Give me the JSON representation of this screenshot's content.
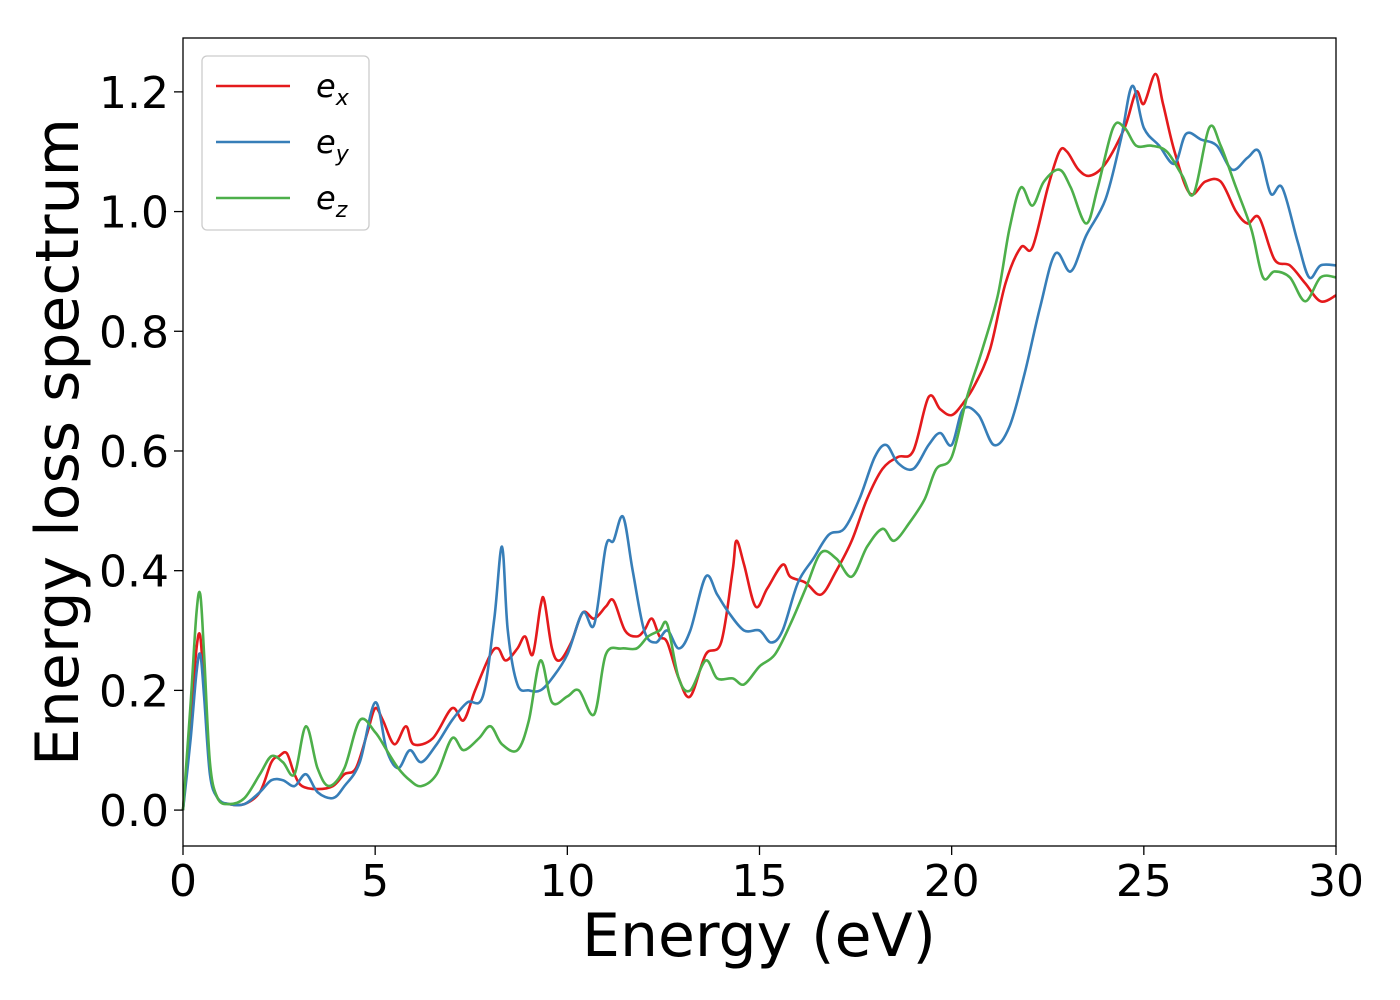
{
  "chart_data": {
    "type": "line",
    "xlabel": "Energy (eV)",
    "ylabel": "Energy loss spectrum",
    "xlim": [
      0,
      30
    ],
    "ylim": [
      -0.06,
      1.29
    ],
    "xticks": [
      0,
      5,
      10,
      15,
      20,
      25,
      30
    ],
    "xtick_labels": [
      "0",
      "5",
      "10",
      "15",
      "20",
      "25",
      "30"
    ],
    "yticks": [
      0.0,
      0.2,
      0.4,
      0.6,
      0.8,
      1.0,
      1.2
    ],
    "ytick_labels": [
      "0.0",
      "0.2",
      "0.4",
      "0.6",
      "0.8",
      "1.0",
      "1.2"
    ],
    "grid": false,
    "legend_position": "top-left",
    "series": [
      {
        "name": "e_x",
        "legend_base": "e",
        "legend_sub": "x",
        "color": "#e41a1c",
        "points": [
          [
            0,
            0
          ],
          [
            0.2,
            0.15
          ],
          [
            0.35,
            0.27
          ],
          [
            0.45,
            0.29
          ],
          [
            0.55,
            0.2
          ],
          [
            0.7,
            0.07
          ],
          [
            0.9,
            0.02
          ],
          [
            1.2,
            0.01
          ],
          [
            1.6,
            0.01
          ],
          [
            2.0,
            0.03
          ],
          [
            2.3,
            0.08
          ],
          [
            2.5,
            0.09
          ],
          [
            2.7,
            0.095
          ],
          [
            2.9,
            0.06
          ],
          [
            3.1,
            0.04
          ],
          [
            3.5,
            0.035
          ],
          [
            3.9,
            0.04
          ],
          [
            4.2,
            0.06
          ],
          [
            4.5,
            0.07
          ],
          [
            4.8,
            0.13
          ],
          [
            5.0,
            0.17
          ],
          [
            5.2,
            0.15
          ],
          [
            5.5,
            0.11
          ],
          [
            5.8,
            0.14
          ],
          [
            6.0,
            0.11
          ],
          [
            6.5,
            0.12
          ],
          [
            7.0,
            0.17
          ],
          [
            7.3,
            0.15
          ],
          [
            7.6,
            0.2
          ],
          [
            8.0,
            0.26
          ],
          [
            8.2,
            0.27
          ],
          [
            8.4,
            0.25
          ],
          [
            8.7,
            0.27
          ],
          [
            8.9,
            0.29
          ],
          [
            9.1,
            0.26
          ],
          [
            9.3,
            0.34
          ],
          [
            9.4,
            0.35
          ],
          [
            9.6,
            0.27
          ],
          [
            9.8,
            0.25
          ],
          [
            10.1,
            0.28
          ],
          [
            10.4,
            0.33
          ],
          [
            10.7,
            0.32
          ],
          [
            11.0,
            0.34
          ],
          [
            11.2,
            0.35
          ],
          [
            11.5,
            0.3
          ],
          [
            11.8,
            0.29
          ],
          [
            12.0,
            0.3
          ],
          [
            12.2,
            0.32
          ],
          [
            12.4,
            0.29
          ],
          [
            12.6,
            0.28
          ],
          [
            12.9,
            0.22
          ],
          [
            13.2,
            0.19
          ],
          [
            13.6,
            0.26
          ],
          [
            14.0,
            0.28
          ],
          [
            14.3,
            0.4
          ],
          [
            14.4,
            0.45
          ],
          [
            14.6,
            0.41
          ],
          [
            14.9,
            0.34
          ],
          [
            15.2,
            0.37
          ],
          [
            15.6,
            0.41
          ],
          [
            15.8,
            0.39
          ],
          [
            16.2,
            0.38
          ],
          [
            16.6,
            0.36
          ],
          [
            17.0,
            0.4
          ],
          [
            17.4,
            0.45
          ],
          [
            17.8,
            0.52
          ],
          [
            18.2,
            0.57
          ],
          [
            18.6,
            0.59
          ],
          [
            19.0,
            0.6
          ],
          [
            19.4,
            0.69
          ],
          [
            19.7,
            0.67
          ],
          [
            20.0,
            0.66
          ],
          [
            20.3,
            0.68
          ],
          [
            20.6,
            0.71
          ],
          [
            21.0,
            0.77
          ],
          [
            21.4,
            0.88
          ],
          [
            21.8,
            0.94
          ],
          [
            22.1,
            0.94
          ],
          [
            22.5,
            1.04
          ],
          [
            22.8,
            1.1
          ],
          [
            23.0,
            1.1
          ],
          [
            23.3,
            1.07
          ],
          [
            23.6,
            1.06
          ],
          [
            24.0,
            1.08
          ],
          [
            24.5,
            1.14
          ],
          [
            24.8,
            1.2
          ],
          [
            25.0,
            1.18
          ],
          [
            25.3,
            1.23
          ],
          [
            25.5,
            1.18
          ],
          [
            25.8,
            1.1
          ],
          [
            26.2,
            1.03
          ],
          [
            26.6,
            1.05
          ],
          [
            27.0,
            1.05
          ],
          [
            27.4,
            1.0
          ],
          [
            27.7,
            0.98
          ],
          [
            28.0,
            0.99
          ],
          [
            28.4,
            0.92
          ],
          [
            28.8,
            0.91
          ],
          [
            29.2,
            0.88
          ],
          [
            29.6,
            0.85
          ],
          [
            30.0,
            0.86
          ]
        ]
      },
      {
        "name": "e_y",
        "legend_base": "e",
        "legend_sub": "y",
        "color": "#377eb8",
        "points": [
          [
            0,
            0
          ],
          [
            0.2,
            0.12
          ],
          [
            0.35,
            0.23
          ],
          [
            0.45,
            0.26
          ],
          [
            0.55,
            0.19
          ],
          [
            0.7,
            0.06
          ],
          [
            0.9,
            0.02
          ],
          [
            1.2,
            0.01
          ],
          [
            1.6,
            0.01
          ],
          [
            2.0,
            0.03
          ],
          [
            2.3,
            0.05
          ],
          [
            2.6,
            0.05
          ],
          [
            2.9,
            0.04
          ],
          [
            3.2,
            0.06
          ],
          [
            3.5,
            0.03
          ],
          [
            3.9,
            0.02
          ],
          [
            4.2,
            0.04
          ],
          [
            4.6,
            0.08
          ],
          [
            5.0,
            0.18
          ],
          [
            5.3,
            0.1
          ],
          [
            5.6,
            0.07
          ],
          [
            5.9,
            0.1
          ],
          [
            6.2,
            0.08
          ],
          [
            6.6,
            0.11
          ],
          [
            7.0,
            0.15
          ],
          [
            7.4,
            0.18
          ],
          [
            7.8,
            0.19
          ],
          [
            8.1,
            0.32
          ],
          [
            8.3,
            0.44
          ],
          [
            8.45,
            0.3
          ],
          [
            8.7,
            0.21
          ],
          [
            9.0,
            0.2
          ],
          [
            9.3,
            0.2
          ],
          [
            9.6,
            0.22
          ],
          [
            10.0,
            0.26
          ],
          [
            10.4,
            0.33
          ],
          [
            10.7,
            0.31
          ],
          [
            11.0,
            0.44
          ],
          [
            11.2,
            0.45
          ],
          [
            11.45,
            0.49
          ],
          [
            11.7,
            0.4
          ],
          [
            12.0,
            0.3
          ],
          [
            12.3,
            0.28
          ],
          [
            12.6,
            0.3
          ],
          [
            12.9,
            0.27
          ],
          [
            13.2,
            0.3
          ],
          [
            13.6,
            0.39
          ],
          [
            13.9,
            0.36
          ],
          [
            14.2,
            0.33
          ],
          [
            14.6,
            0.3
          ],
          [
            15.0,
            0.3
          ],
          [
            15.3,
            0.28
          ],
          [
            15.6,
            0.3
          ],
          [
            16.0,
            0.38
          ],
          [
            16.4,
            0.42
          ],
          [
            16.8,
            0.46
          ],
          [
            17.2,
            0.47
          ],
          [
            17.6,
            0.52
          ],
          [
            18.0,
            0.59
          ],
          [
            18.3,
            0.61
          ],
          [
            18.6,
            0.58
          ],
          [
            19.0,
            0.57
          ],
          [
            19.4,
            0.61
          ],
          [
            19.7,
            0.63
          ],
          [
            20.0,
            0.61
          ],
          [
            20.3,
            0.67
          ],
          [
            20.7,
            0.66
          ],
          [
            21.1,
            0.61
          ],
          [
            21.5,
            0.64
          ],
          [
            21.9,
            0.73
          ],
          [
            22.3,
            0.84
          ],
          [
            22.7,
            0.93
          ],
          [
            23.1,
            0.9
          ],
          [
            23.5,
            0.96
          ],
          [
            24.0,
            1.02
          ],
          [
            24.4,
            1.12
          ],
          [
            24.7,
            1.21
          ],
          [
            25.0,
            1.14
          ],
          [
            25.4,
            1.11
          ],
          [
            25.8,
            1.08
          ],
          [
            26.1,
            1.13
          ],
          [
            26.5,
            1.12
          ],
          [
            26.9,
            1.11
          ],
          [
            27.3,
            1.07
          ],
          [
            27.7,
            1.09
          ],
          [
            28.0,
            1.1
          ],
          [
            28.3,
            1.03
          ],
          [
            28.6,
            1.04
          ],
          [
            29.0,
            0.95
          ],
          [
            29.3,
            0.89
          ],
          [
            29.6,
            0.91
          ],
          [
            30.0,
            0.91
          ]
        ]
      },
      {
        "name": "e_z",
        "legend_base": "e",
        "legend_sub": "z",
        "color": "#4daf4a",
        "points": [
          [
            0,
            0
          ],
          [
            0.2,
            0.18
          ],
          [
            0.35,
            0.33
          ],
          [
            0.45,
            0.36
          ],
          [
            0.55,
            0.26
          ],
          [
            0.7,
            0.08
          ],
          [
            0.9,
            0.02
          ],
          [
            1.2,
            0.01
          ],
          [
            1.6,
            0.02
          ],
          [
            2.0,
            0.06
          ],
          [
            2.3,
            0.09
          ],
          [
            2.6,
            0.08
          ],
          [
            2.9,
            0.06
          ],
          [
            3.2,
            0.14
          ],
          [
            3.5,
            0.07
          ],
          [
            3.8,
            0.04
          ],
          [
            4.2,
            0.07
          ],
          [
            4.6,
            0.15
          ],
          [
            5.0,
            0.13
          ],
          [
            5.3,
            0.1
          ],
          [
            5.6,
            0.07
          ],
          [
            5.9,
            0.05
          ],
          [
            6.2,
            0.04
          ],
          [
            6.6,
            0.06
          ],
          [
            7.0,
            0.12
          ],
          [
            7.3,
            0.1
          ],
          [
            7.7,
            0.12
          ],
          [
            8.0,
            0.14
          ],
          [
            8.3,
            0.11
          ],
          [
            8.7,
            0.1
          ],
          [
            9.0,
            0.15
          ],
          [
            9.3,
            0.25
          ],
          [
            9.6,
            0.18
          ],
          [
            10.0,
            0.19
          ],
          [
            10.3,
            0.2
          ],
          [
            10.7,
            0.16
          ],
          [
            11.0,
            0.26
          ],
          [
            11.4,
            0.27
          ],
          [
            11.8,
            0.27
          ],
          [
            12.1,
            0.29
          ],
          [
            12.4,
            0.3
          ],
          [
            12.6,
            0.31
          ],
          [
            12.9,
            0.22
          ],
          [
            13.2,
            0.2
          ],
          [
            13.6,
            0.25
          ],
          [
            13.9,
            0.22
          ],
          [
            14.3,
            0.22
          ],
          [
            14.6,
            0.21
          ],
          [
            15.0,
            0.24
          ],
          [
            15.4,
            0.26
          ],
          [
            15.8,
            0.31
          ],
          [
            16.2,
            0.37
          ],
          [
            16.6,
            0.43
          ],
          [
            17.0,
            0.42
          ],
          [
            17.4,
            0.39
          ],
          [
            17.8,
            0.44
          ],
          [
            18.2,
            0.47
          ],
          [
            18.5,
            0.45
          ],
          [
            18.9,
            0.48
          ],
          [
            19.3,
            0.52
          ],
          [
            19.6,
            0.57
          ],
          [
            20.0,
            0.59
          ],
          [
            20.4,
            0.69
          ],
          [
            20.8,
            0.77
          ],
          [
            21.2,
            0.86
          ],
          [
            21.5,
            0.97
          ],
          [
            21.8,
            1.04
          ],
          [
            22.1,
            1.01
          ],
          [
            22.4,
            1.05
          ],
          [
            22.8,
            1.07
          ],
          [
            23.1,
            1.04
          ],
          [
            23.5,
            0.98
          ],
          [
            23.8,
            1.04
          ],
          [
            24.2,
            1.14
          ],
          [
            24.5,
            1.14
          ],
          [
            24.8,
            1.11
          ],
          [
            25.2,
            1.11
          ],
          [
            25.6,
            1.1
          ],
          [
            26.0,
            1.06
          ],
          [
            26.3,
            1.03
          ],
          [
            26.7,
            1.14
          ],
          [
            27.0,
            1.11
          ],
          [
            27.4,
            1.04
          ],
          [
            27.8,
            0.97
          ],
          [
            28.1,
            0.89
          ],
          [
            28.4,
            0.9
          ],
          [
            28.8,
            0.89
          ],
          [
            29.2,
            0.85
          ],
          [
            29.6,
            0.89
          ],
          [
            30.0,
            0.89
          ]
        ]
      }
    ]
  }
}
